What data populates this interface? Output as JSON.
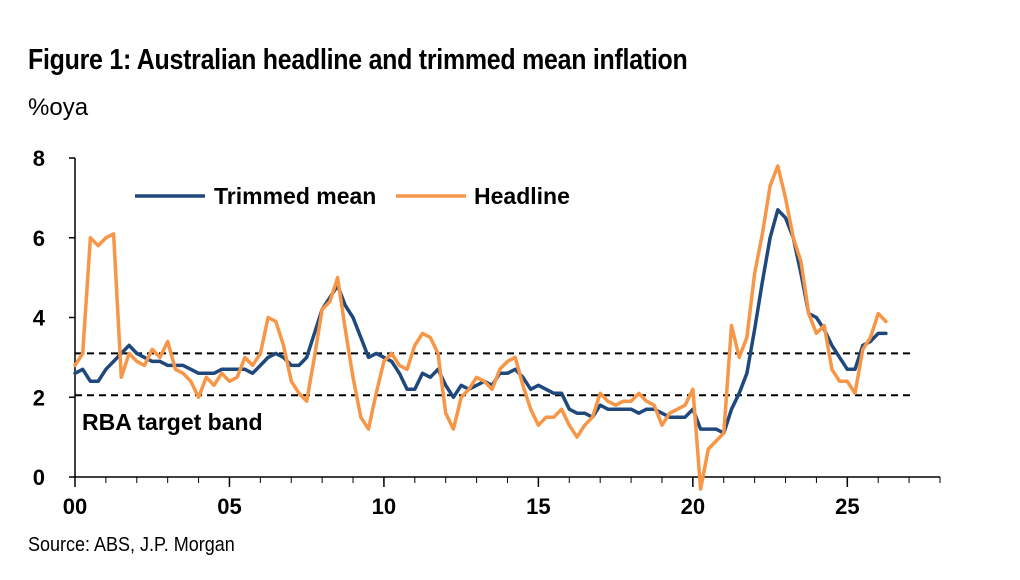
{
  "title": "Figure 1: Australian headline and trimmed mean inflation",
  "unit_label": "%oya",
  "source": "Source: ABS, J.P. Morgan",
  "band_label": "RBA target band",
  "colors": {
    "trimmed_mean": "#1f497d",
    "headline": "#f79646"
  },
  "chart_data": {
    "type": "line",
    "title": "Figure 1: Australian headline and trimmed mean inflation",
    "ylabel": "%oya",
    "xlim": [
      2000,
      2028
    ],
    "ylim": [
      0,
      8
    ],
    "x_ticks": [
      {
        "value": 2000,
        "label": "00"
      },
      {
        "value": 2005,
        "label": "05"
      },
      {
        "value": 2010,
        "label": "10"
      },
      {
        "value": 2015,
        "label": "15"
      },
      {
        "value": 2020,
        "label": "20"
      },
      {
        "value": 2025,
        "label": "25"
      }
    ],
    "y_ticks": [
      0,
      2,
      4,
      6,
      8
    ],
    "grid": false,
    "legend_position": "top-left",
    "reference_lines": [
      {
        "y": 3.1,
        "style": "dashed"
      },
      {
        "y": 2.05,
        "style": "dashed"
      }
    ],
    "series": [
      {
        "name": "Trimmed mean",
        "x": [
          2000.0,
          2000.25,
          2000.5,
          2000.75,
          2001.0,
          2001.25,
          2001.5,
          2001.75,
          2002.0,
          2002.25,
          2002.5,
          2002.75,
          2003.0,
          2003.25,
          2003.5,
          2003.75,
          2004.0,
          2004.25,
          2004.5,
          2004.75,
          2005.0,
          2005.25,
          2005.5,
          2005.75,
          2006.0,
          2006.25,
          2006.5,
          2006.75,
          2007.0,
          2007.25,
          2007.5,
          2007.75,
          2008.0,
          2008.25,
          2008.5,
          2008.75,
          2009.0,
          2009.25,
          2009.5,
          2009.75,
          2010.0,
          2010.25,
          2010.5,
          2010.75,
          2011.0,
          2011.25,
          2011.5,
          2011.75,
          2012.0,
          2012.25,
          2012.5,
          2012.75,
          2013.0,
          2013.25,
          2013.5,
          2013.75,
          2014.0,
          2014.25,
          2014.5,
          2014.75,
          2015.0,
          2015.25,
          2015.5,
          2015.75,
          2016.0,
          2016.25,
          2016.5,
          2016.75,
          2017.0,
          2017.25,
          2017.5,
          2017.75,
          2018.0,
          2018.25,
          2018.5,
          2018.75,
          2019.0,
          2019.25,
          2019.5,
          2019.75,
          2020.0,
          2020.25,
          2020.5,
          2020.75,
          2021.0,
          2021.25,
          2021.5,
          2021.75,
          2022.0,
          2022.25,
          2022.5,
          2022.75,
          2023.0,
          2023.25,
          2023.5,
          2023.75,
          2024.0,
          2024.25,
          2024.5,
          2024.75,
          2025.0,
          2025.25,
          2025.5,
          2025.75,
          2026.0,
          2026.25
        ],
        "values": [
          2.6,
          2.7,
          2.4,
          2.4,
          2.7,
          2.9,
          3.1,
          3.3,
          3.1,
          3.0,
          2.9,
          2.9,
          2.8,
          2.8,
          2.8,
          2.7,
          2.6,
          2.6,
          2.6,
          2.7,
          2.7,
          2.7,
          2.7,
          2.6,
          2.8,
          3.0,
          3.1,
          3.0,
          2.8,
          2.8,
          3.0,
          3.6,
          4.2,
          4.5,
          4.8,
          4.3,
          4.0,
          3.5,
          3.0,
          3.1,
          3.0,
          2.9,
          2.6,
          2.2,
          2.2,
          2.6,
          2.5,
          2.7,
          2.3,
          2.0,
          2.3,
          2.2,
          2.3,
          2.4,
          2.3,
          2.6,
          2.6,
          2.7,
          2.5,
          2.2,
          2.3,
          2.2,
          2.1,
          2.1,
          1.7,
          1.6,
          1.6,
          1.5,
          1.8,
          1.7,
          1.7,
          1.7,
          1.7,
          1.6,
          1.7,
          1.7,
          1.6,
          1.5,
          1.5,
          1.5,
          1.7,
          1.2,
          1.2,
          1.2,
          1.1,
          1.7,
          2.1,
          2.6,
          3.7,
          4.9,
          6.0,
          6.7,
          6.5,
          6.0,
          5.1,
          4.1,
          4.0,
          3.7,
          3.3,
          3.0,
          2.7,
          2.7,
          3.3,
          3.4,
          3.6,
          3.6
        ]
      },
      {
        "name": "Headline",
        "x": [
          2000.0,
          2000.25,
          2000.5,
          2000.75,
          2001.0,
          2001.25,
          2001.5,
          2001.75,
          2002.0,
          2002.25,
          2002.5,
          2002.75,
          2003.0,
          2003.25,
          2003.5,
          2003.75,
          2004.0,
          2004.25,
          2004.5,
          2004.75,
          2005.0,
          2005.25,
          2005.5,
          2005.75,
          2006.0,
          2006.25,
          2006.5,
          2006.75,
          2007.0,
          2007.25,
          2007.5,
          2007.75,
          2008.0,
          2008.25,
          2008.5,
          2008.75,
          2009.0,
          2009.25,
          2009.5,
          2009.75,
          2010.0,
          2010.25,
          2010.5,
          2010.75,
          2011.0,
          2011.25,
          2011.5,
          2011.75,
          2012.0,
          2012.25,
          2012.5,
          2012.75,
          2013.0,
          2013.25,
          2013.5,
          2013.75,
          2014.0,
          2014.25,
          2014.5,
          2014.75,
          2015.0,
          2015.25,
          2015.5,
          2015.75,
          2016.0,
          2016.25,
          2016.5,
          2016.75,
          2017.0,
          2017.25,
          2017.5,
          2017.75,
          2018.0,
          2018.25,
          2018.5,
          2018.75,
          2019.0,
          2019.25,
          2019.5,
          2019.75,
          2020.0,
          2020.25,
          2020.5,
          2020.75,
          2021.0,
          2021.25,
          2021.5,
          2021.75,
          2022.0,
          2022.25,
          2022.5,
          2022.75,
          2023.0,
          2023.25,
          2023.5,
          2023.75,
          2024.0,
          2024.25,
          2024.5,
          2024.75,
          2025.0,
          2025.25,
          2025.5,
          2025.75,
          2026.0,
          2026.25
        ],
        "values": [
          2.8,
          3.1,
          6.0,
          5.8,
          6.0,
          6.1,
          2.5,
          3.1,
          2.9,
          2.8,
          3.2,
          3.0,
          3.4,
          2.7,
          2.6,
          2.4,
          2.0,
          2.5,
          2.3,
          2.6,
          2.4,
          2.5,
          3.0,
          2.8,
          3.1,
          4.0,
          3.9,
          3.3,
          2.4,
          2.1,
          1.9,
          3.0,
          4.2,
          4.4,
          5.0,
          3.7,
          2.5,
          1.5,
          1.2,
          2.1,
          2.9,
          3.1,
          2.8,
          2.7,
          3.3,
          3.6,
          3.5,
          3.1,
          1.6,
          1.2,
          2.0,
          2.2,
          2.5,
          2.4,
          2.2,
          2.7,
          2.9,
          3.0,
          2.3,
          1.7,
          1.3,
          1.5,
          1.5,
          1.7,
          1.3,
          1.0,
          1.3,
          1.5,
          2.1,
          1.9,
          1.8,
          1.9,
          1.9,
          2.1,
          1.9,
          1.8,
          1.3,
          1.6,
          1.7,
          1.8,
          2.2,
          -0.3,
          0.7,
          0.9,
          1.1,
          3.8,
          3.0,
          3.5,
          5.1,
          6.1,
          7.3,
          7.8,
          7.0,
          6.0,
          5.4,
          4.1,
          3.6,
          3.8,
          2.7,
          2.4,
          2.4,
          2.1,
          3.2,
          3.5,
          4.1,
          3.9
        ]
      }
    ]
  }
}
